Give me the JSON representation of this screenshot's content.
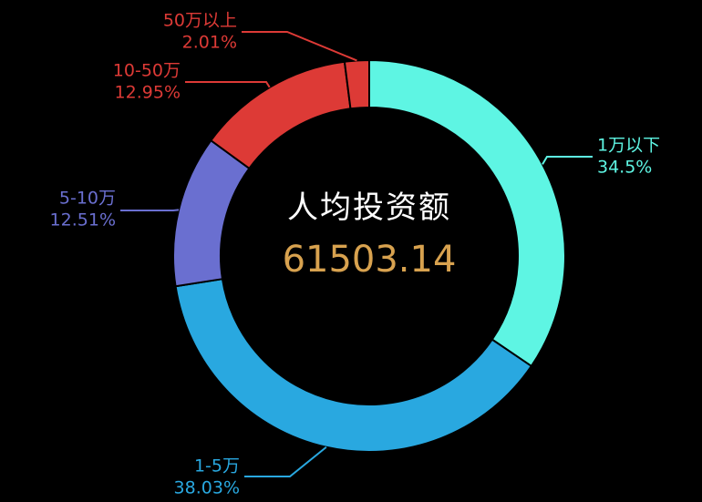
{
  "chart_data": {
    "type": "pie",
    "variant": "donut",
    "center_title": "人均投资额",
    "center_value": "61503.14",
    "slices": [
      {
        "name": "1万以下",
        "value": 34.5,
        "label": "34.5%",
        "color": "#5ef5e3"
      },
      {
        "name": "1-5万",
        "value": 38.03,
        "label": "38.03%",
        "color": "#29a8e0"
      },
      {
        "name": "5-10万",
        "value": 12.51,
        "label": "12.51%",
        "color": "#6a6fd0"
      },
      {
        "name": "10-50万",
        "value": 12.95,
        "label": "12.95%",
        "color": "#dd3a36"
      },
      {
        "name": "50万以上",
        "value": 2.01,
        "label": "2.01%",
        "color": "#dd3a36"
      }
    ]
  }
}
